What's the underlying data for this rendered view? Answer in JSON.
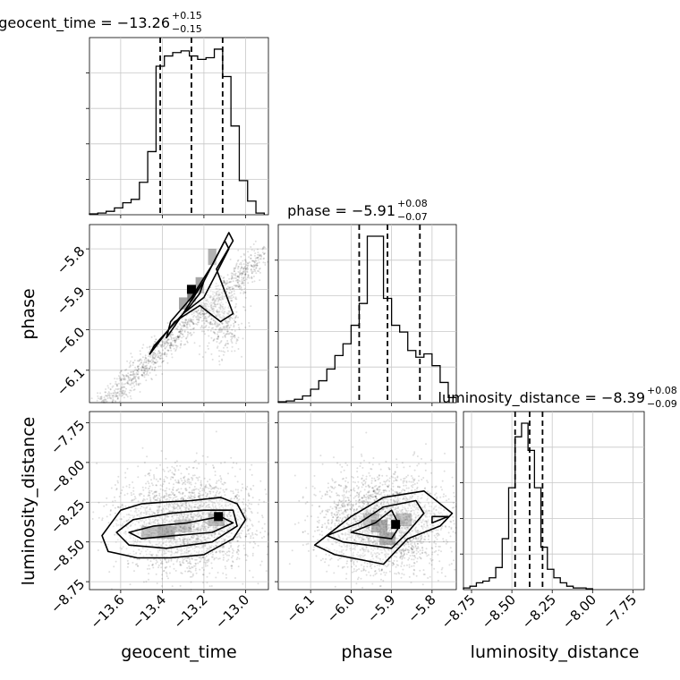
{
  "chart_data": {
    "type": "corner",
    "parameters": [
      "geocent_time",
      "phase",
      "luminosity_distance"
    ],
    "axes": {
      "geocent_time": {
        "label": "geocent_time",
        "range": [
          -13.75,
          -12.89
        ],
        "ticks": [
          -13.6,
          -13.4,
          -13.2,
          -13.0
        ],
        "tick_labels": [
          "−13.6",
          "−13.4",
          "−13.2",
          "−13.0"
        ]
      },
      "phase": {
        "label": "phase",
        "range": [
          -6.18,
          -5.74
        ],
        "ticks": [
          -6.1,
          -6.0,
          -5.9,
          -5.8
        ],
        "tick_labels": [
          "−6.1",
          "−6.0",
          "−5.9",
          "−5.8"
        ]
      },
      "luminosity_distance": {
        "label": "luminosity_distance",
        "range": [
          -8.8,
          -7.68
        ],
        "ticks": [
          -8.75,
          -8.5,
          -8.25,
          -8.0,
          -7.75
        ],
        "tick_labels": [
          "−8.75",
          "−8.50",
          "−8.25",
          "−8.00",
          "−7.75"
        ]
      }
    },
    "titles": [
      {
        "param": "geocent_time",
        "main": "geocent_time = −13.26",
        "upper": "+0.15",
        "lower": "−0.15"
      },
      {
        "param": "phase",
        "main": "phase = −5.91",
        "upper": "+0.08",
        "lower": "−0.07"
      },
      {
        "param": "luminosity_distance",
        "main": "luminosity_distance = −8.39",
        "upper": "+0.08",
        "lower": "−0.09"
      }
    ],
    "histograms": [
      {
        "param": "geocent_time",
        "bin_edges": [
          -13.75,
          -13.71,
          -13.67,
          -13.63,
          -13.59,
          -13.55,
          -13.51,
          -13.47,
          -13.43,
          -13.39,
          -13.35,
          -13.31,
          -13.27,
          -13.23,
          -13.19,
          -13.15,
          -13.11,
          -13.07,
          -13.03,
          -12.99,
          -12.95,
          -12.91
        ],
        "counts": [
          0.5,
          1,
          2,
          4,
          7,
          9,
          19,
          37,
          87,
          93,
          95,
          96,
          93,
          91,
          92,
          97,
          81,
          52,
          20,
          8,
          1
        ],
        "quantiles": [
          -13.41,
          -13.26,
          -13.11
        ]
      },
      {
        "param": "phase",
        "bin_edges": [
          -6.18,
          -6.16,
          -6.14,
          -6.12,
          -6.1,
          -6.08,
          -6.06,
          -6.04,
          -6.02,
          -6.0,
          -5.98,
          -5.96,
          -5.94,
          -5.92,
          -5.9,
          -5.88,
          -5.86,
          -5.84,
          -5.82,
          -5.8,
          -5.78,
          -5.76,
          -5.74
        ],
        "counts": [
          0.5,
          1,
          2,
          4,
          8,
          13,
          20,
          28,
          35,
          46,
          59,
          99,
          99,
          62,
          46,
          42,
          31,
          27,
          29,
          22,
          12,
          3
        ],
        "quantiles": [
          -5.98,
          -5.91,
          -5.83
        ]
      },
      {
        "param": "luminosity_distance",
        "bin_edges": [
          -8.8,
          -8.76,
          -8.72,
          -8.68,
          -8.64,
          -8.6,
          -8.56,
          -8.52,
          -8.48,
          -8.44,
          -8.4,
          -8.36,
          -8.32,
          -8.28,
          -8.24,
          -8.2,
          -8.16,
          -8.12,
          -8.08,
          -8.04,
          -8.0
        ],
        "counts": [
          1,
          2,
          4,
          5,
          7,
          13,
          30,
          60,
          90,
          98,
          82,
          60,
          25,
          12,
          7,
          4,
          2,
          1,
          1,
          0.5
        ],
        "quantiles": [
          -8.48,
          -8.39,
          -8.31
        ]
      }
    ],
    "joint": [
      {
        "x": "geocent_time",
        "y": "phase",
        "peak": [
          -13.26,
          -5.9
        ],
        "contours": [
          [
            [
              -13.44,
              -6.04
            ],
            [
              -13.3,
              -5.96
            ],
            [
              -13.2,
              -5.88
            ],
            [
              -13.12,
              -5.8
            ],
            [
              -13.08,
              -5.76
            ],
            [
              -13.06,
              -5.78
            ],
            [
              -13.14,
              -5.85
            ],
            [
              -13.06,
              -5.96
            ],
            [
              -13.12,
              -5.98
            ],
            [
              -13.22,
              -5.94
            ],
            [
              -13.34,
              -5.98
            ],
            [
              -13.46,
              -6.06
            ]
          ],
          [
            [
              -13.36,
              -5.98
            ],
            [
              -13.26,
              -5.92
            ],
            [
              -13.16,
              -5.84
            ],
            [
              -13.1,
              -5.78
            ],
            [
              -13.08,
              -5.8
            ],
            [
              -13.14,
              -5.86
            ],
            [
              -13.2,
              -5.92
            ],
            [
              -13.3,
              -5.96
            ],
            [
              -13.38,
              -6.02
            ]
          ],
          [
            [
              -13.3,
              -5.96
            ],
            [
              -13.24,
              -5.91
            ],
            [
              -13.2,
              -5.88
            ],
            [
              -13.22,
              -5.91
            ],
            [
              -13.28,
              -5.95
            ]
          ]
        ]
      },
      {
        "x": "geocent_time",
        "y": "luminosity_distance",
        "peak": [
          -13.13,
          -8.34
        ],
        "contours": [
          [
            [
              -13.69,
              -8.46
            ],
            [
              -13.6,
              -8.3
            ],
            [
              -13.5,
              -8.26
            ],
            [
              -13.4,
              -8.25
            ],
            [
              -13.26,
              -8.24
            ],
            [
              -13.12,
              -8.22
            ],
            [
              -13.04,
              -8.26
            ],
            [
              -13.0,
              -8.36
            ],
            [
              -13.06,
              -8.48
            ],
            [
              -13.2,
              -8.58
            ],
            [
              -13.36,
              -8.6
            ],
            [
              -13.52,
              -8.6
            ],
            [
              -13.66,
              -8.56
            ]
          ],
          [
            [
              -13.62,
              -8.44
            ],
            [
              -13.54,
              -8.36
            ],
            [
              -13.36,
              -8.32
            ],
            [
              -13.2,
              -8.3
            ],
            [
              -13.06,
              -8.3
            ],
            [
              -13.04,
              -8.4
            ],
            [
              -13.16,
              -8.5
            ],
            [
              -13.38,
              -8.54
            ],
            [
              -13.56,
              -8.52
            ]
          ],
          [
            [
              -13.56,
              -8.44
            ],
            [
              -13.44,
              -8.4
            ],
            [
              -13.28,
              -8.38
            ],
            [
              -13.12,
              -8.34
            ],
            [
              -13.06,
              -8.38
            ],
            [
              -13.16,
              -8.44
            ],
            [
              -13.34,
              -8.46
            ],
            [
              -13.5,
              -8.48
            ]
          ]
        ]
      },
      {
        "x": "phase",
        "y": "luminosity_distance",
        "peak": [
          -5.89,
          -8.39
        ],
        "contours": [
          [
            [
              -6.09,
              -8.52
            ],
            [
              -6.0,
              -8.34
            ],
            [
              -5.92,
              -8.22
            ],
            [
              -5.82,
              -8.18
            ],
            [
              -5.75,
              -8.32
            ],
            [
              -5.78,
              -8.4
            ],
            [
              -5.86,
              -8.48
            ],
            [
              -5.92,
              -8.64
            ],
            [
              -5.96,
              -8.62
            ],
            [
              -6.04,
              -8.58
            ]
          ],
          [
            [
              -6.06,
              -8.46
            ],
            [
              -5.98,
              -8.38
            ],
            [
              -5.92,
              -8.28
            ],
            [
              -5.84,
              -8.24
            ],
            [
              -5.82,
              -8.32
            ],
            [
              -5.86,
              -8.44
            ],
            [
              -5.9,
              -8.54
            ],
            [
              -5.96,
              -8.52
            ],
            [
              -6.02,
              -8.5
            ]
          ],
          [
            [
              -6.0,
              -8.44
            ],
            [
              -5.94,
              -8.38
            ],
            [
              -5.9,
              -8.3
            ],
            [
              -5.88,
              -8.4
            ],
            [
              -5.9,
              -8.48
            ],
            [
              -5.96,
              -8.46
            ]
          ],
          [
            [
              -5.8,
              -8.34
            ],
            [
              -5.76,
              -8.34
            ],
            [
              -5.8,
              -8.38
            ]
          ]
        ]
      }
    ]
  }
}
